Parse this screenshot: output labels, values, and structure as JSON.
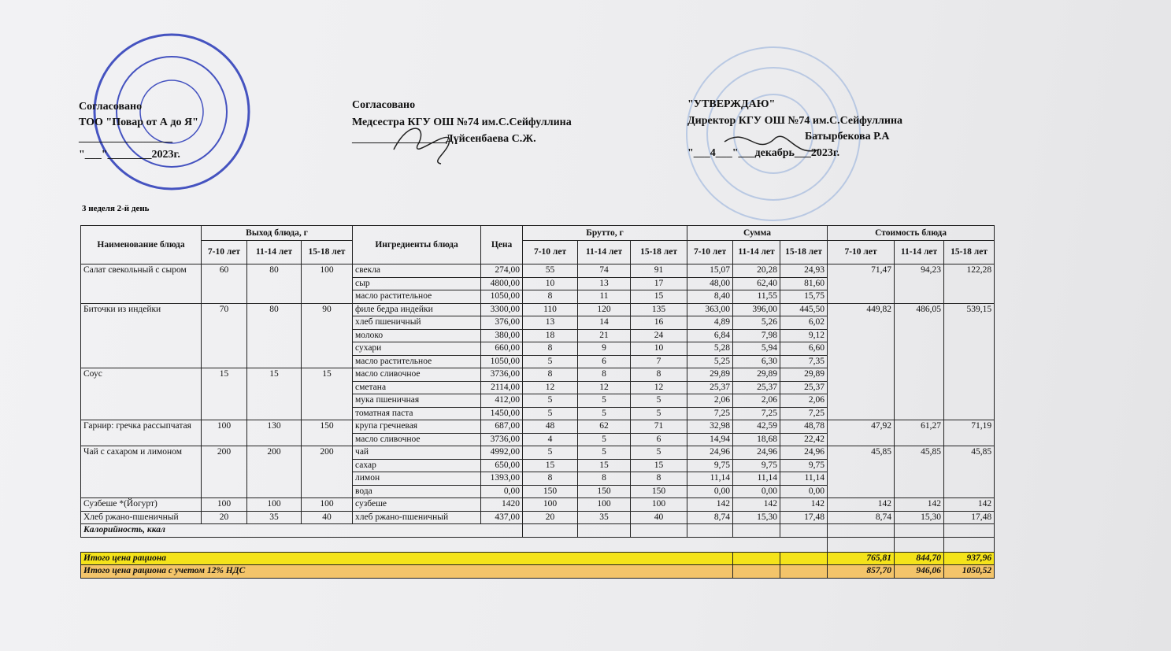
{
  "header": {
    "left": [
      "Согласовано",
      "ТОО \"Повар от А до Я\"",
      "_________________",
      "\"___\"________2023г."
    ],
    "middle": [
      "Согласовано",
      "Медсестра КГУ ОШ №74 им.С.Сейфуллина",
      "_________________Дүйсенбаева С.Ж."
    ],
    "right": [
      "\"УТВЕРЖДАЮ\"",
      "Директор КГУ ОШ №74 им.С.Сейфуллина",
      "Батырбекова Р.А",
      "\"___4___\"___декабрь___2023г."
    ]
  },
  "subtitle": "3 неделя 2-й день",
  "table": {
    "headers": {
      "name": "Наименование блюда",
      "output": "Выход блюда, г",
      "ingredients": "Ингредиенты блюда",
      "price": "Цена",
      "brutto": "Брутто, г",
      "sum": "Сумма",
      "cost": "Стоимость блюда",
      "ages": [
        "7-10 лет",
        "11-14 лет",
        "15-18 лет"
      ]
    },
    "dishes": [
      {
        "name": "Салат свекольный с сыром",
        "output": [
          "60",
          "80",
          "100"
        ],
        "cost": [
          "71,47",
          "94,23",
          "122,28"
        ],
        "ingredients": [
          {
            "name": "свекла",
            "price": "274,00",
            "brutto": [
              "55",
              "74",
              "91"
            ],
            "sum": [
              "15,07",
              "20,28",
              "24,93"
            ]
          },
          {
            "name": "сыр",
            "price": "4800,00",
            "brutto": [
              "10",
              "13",
              "17"
            ],
            "sum": [
              "48,00",
              "62,40",
              "81,60"
            ]
          },
          {
            "name": "масло растительное",
            "price": "1050,00",
            "brutto": [
              "8",
              "11",
              "15"
            ],
            "sum": [
              "8,40",
              "11,55",
              "15,75"
            ]
          }
        ]
      },
      {
        "name": "Биточки из индейки",
        "output": [
          "70",
          "80",
          "90"
        ],
        "cost": [
          "449,82",
          "486,05",
          "539,15"
        ],
        "ingredients": [
          {
            "name": "филе бедра индейки",
            "price": "3300,00",
            "brutto": [
              "110",
              "120",
              "135"
            ],
            "sum": [
              "363,00",
              "396,00",
              "445,50"
            ]
          },
          {
            "name": "хлеб пшеничный",
            "price": "376,00",
            "brutto": [
              "13",
              "14",
              "16"
            ],
            "sum": [
              "4,89",
              "5,26",
              "6,02"
            ]
          },
          {
            "name": "молоко",
            "price": "380,00",
            "brutto": [
              "18",
              "21",
              "24"
            ],
            "sum": [
              "6,84",
              "7,98",
              "9,12"
            ]
          },
          {
            "name": "сухари",
            "price": "660,00",
            "brutto": [
              "8",
              "9",
              "10"
            ],
            "sum": [
              "5,28",
              "5,94",
              "6,60"
            ]
          },
          {
            "name": "масло растительное",
            "price": "1050,00",
            "brutto": [
              "5",
              "6",
              "7"
            ],
            "sum": [
              "5,25",
              "6,30",
              "7,35"
            ]
          }
        ]
      },
      {
        "name": "Соус",
        "output": [
          "15",
          "15",
          "15"
        ],
        "ingredients": [
          {
            "name": "масло сливочное",
            "price": "3736,00",
            "brutto": [
              "8",
              "8",
              "8"
            ],
            "sum": [
              "29,89",
              "29,89",
              "29,89"
            ]
          },
          {
            "name": "сметана",
            "price": "2114,00",
            "brutto": [
              "12",
              "12",
              "12"
            ],
            "sum": [
              "25,37",
              "25,37",
              "25,37"
            ]
          },
          {
            "name": "мука пшеничная",
            "price": "412,00",
            "brutto": [
              "5",
              "5",
              "5"
            ],
            "sum": [
              "2,06",
              "2,06",
              "2,06"
            ]
          },
          {
            "name": "томатная паста",
            "price": "1450,00",
            "brutto": [
              "5",
              "5",
              "5"
            ],
            "sum": [
              "7,25",
              "7,25",
              "7,25"
            ]
          }
        ]
      },
      {
        "name": "Гарнир: гречка рассыпчатая",
        "output": [
          "100",
          "130",
          "150"
        ],
        "cost": [
          "47,92",
          "61,27",
          "71,19"
        ],
        "ingredients": [
          {
            "name": "крупа гречневая",
            "price": "687,00",
            "brutto": [
              "48",
              "62",
              "71"
            ],
            "sum": [
              "32,98",
              "42,59",
              "48,78"
            ]
          },
          {
            "name": "масло сливочное",
            "price": "3736,00",
            "brutto": [
              "4",
              "5",
              "6"
            ],
            "sum": [
              "14,94",
              "18,68",
              "22,42"
            ]
          }
        ]
      },
      {
        "name": "Чай с сахаром и лимоном",
        "output": [
          "200",
          "200",
          "200"
        ],
        "cost": [
          "45,85",
          "45,85",
          "45,85"
        ],
        "ingredients": [
          {
            "name": "чай",
            "price": "4992,00",
            "brutto": [
              "5",
              "5",
              "5"
            ],
            "sum": [
              "24,96",
              "24,96",
              "24,96"
            ]
          },
          {
            "name": "сахар",
            "price": "650,00",
            "brutto": [
              "15",
              "15",
              "15"
            ],
            "sum": [
              "9,75",
              "9,75",
              "9,75"
            ]
          },
          {
            "name": "лимон",
            "price": "1393,00",
            "brutto": [
              "8",
              "8",
              "8"
            ],
            "sum": [
              "11,14",
              "11,14",
              "11,14"
            ]
          },
          {
            "name": "вода",
            "price": "0,00",
            "brutto": [
              "150",
              "150",
              "150"
            ],
            "sum": [
              "0,00",
              "0,00",
              "0,00"
            ]
          }
        ]
      },
      {
        "name": "Сузбеше *(Йогурт)",
        "output": [
          "100",
          "100",
          "100"
        ],
        "cost": [
          "142",
          "142",
          "142"
        ],
        "ingredients": [
          {
            "name": "сузбеше",
            "price": "1420",
            "brutto": [
              "100",
              "100",
              "100"
            ],
            "sum": [
              "142",
              "142",
              "142"
            ]
          }
        ]
      },
      {
        "name": "Хлеб ржано-пшеничный",
        "output": [
          "20",
          "35",
          "40"
        ],
        "cost": [
          "8,74",
          "15,30",
          "17,48"
        ],
        "ingredients": [
          {
            "name": "хлеб ржано-пшеничный",
            "price": "437,00",
            "brutto": [
              "20",
              "35",
              "40"
            ],
            "sum": [
              "8,74",
              "15,30",
              "17,48"
            ]
          }
        ]
      }
    ],
    "calories_label": "Калорийность, ккал",
    "totals": [
      {
        "label": "Итого цена рациона",
        "values": [
          "765,81",
          "844,70",
          "937,96"
        ]
      },
      {
        "label": "Итого цена рациона с учетом 12% НДС",
        "values": [
          "857,70",
          "946,06",
          "1050,52"
        ]
      }
    ]
  }
}
